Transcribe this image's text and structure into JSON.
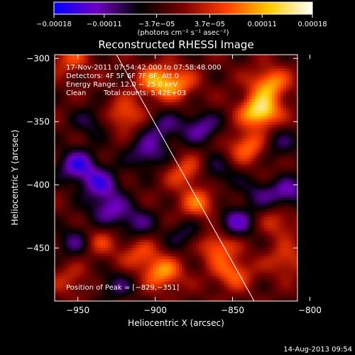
{
  "chart_data": {
    "type": "heatmap",
    "title": "Reconstructed RHESSI Image",
    "xlabel": "Heliocentric X (arcsec)",
    "ylabel": "Heliocentric Y (arcsec)",
    "xlim": [
      -965,
      -808
    ],
    "ylim": [
      -492,
      -297
    ],
    "x_ticks": [
      {
        "value": -950,
        "label": "−950"
      },
      {
        "value": -900,
        "label": "−900"
      },
      {
        "value": -850,
        "label": "−850"
      },
      {
        "value": -800,
        "label": "−800"
      }
    ],
    "y_ticks": [
      {
        "value": -300,
        "label": "−300"
      },
      {
        "value": -350,
        "label": "−350"
      },
      {
        "value": -400,
        "label": "−400"
      },
      {
        "value": -450,
        "label": "−450"
      }
    ],
    "annotations": [
      "17-Nov-2011 07:54:42.000 to 07:58:48.000",
      "Detectors: 4F 5F 6F 7F 8F, Att 0",
      "Energy Range: 12.0 − 25.0 keV",
      "Clean",
      "Total counts: 5.42E+03",
      "Position of Peak = [−829,−351]"
    ],
    "peak": {
      "x": -829,
      "y": -351
    },
    "limb_line": {
      "x": [
        -925,
        -836
      ],
      "y": [
        -297,
        -492
      ]
    },
    "colorbar": {
      "range": [
        -0.00018,
        0.00018
      ],
      "ticks": [
        {
          "value": -0.00018,
          "label": "−0.00018"
        },
        {
          "value": -0.00011,
          "label": "−0.00011"
        },
        {
          "value": -3.7e-05,
          "label": "−3.7e−05"
        },
        {
          "value": 3.7e-05,
          "label": "3.7e−05"
        },
        {
          "value": 0.00011,
          "label": "0.00011"
        },
        {
          "value": 0.00018,
          "label": "0.00018"
        }
      ],
      "units": "(photons cm⁻² s⁻¹ asec⁻²)",
      "colors": [
        "#0000ff",
        "#7000c0",
        "#000000",
        "#7a0000",
        "#ff4000",
        "#ffcc00",
        "#ffffff"
      ]
    },
    "blobs": [
      {
        "x": -832,
        "y": -342,
        "v": 0.00017
      },
      {
        "x": -826,
        "y": -320,
        "v": 0.00012
      },
      {
        "x": -840,
        "y": -370,
        "v": 0.0001
      },
      {
        "x": -900,
        "y": -318,
        "v": 0.0001
      },
      {
        "x": -886,
        "y": -320,
        "v": 9e-05
      },
      {
        "x": -920,
        "y": -345,
        "v": 9e-05
      },
      {
        "x": -880,
        "y": -390,
        "v": 8e-05
      },
      {
        "x": -872,
        "y": -415,
        "v": 9e-05
      },
      {
        "x": -860,
        "y": -448,
        "v": 0.0001
      },
      {
        "x": -850,
        "y": -470,
        "v": 9e-05
      },
      {
        "x": -895,
        "y": -470,
        "v": 0.00011
      },
      {
        "x": -910,
        "y": -455,
        "v": 7e-05
      },
      {
        "x": -938,
        "y": -445,
        "v": 8e-05
      },
      {
        "x": -955,
        "y": -300,
        "v": 7e-05
      },
      {
        "x": -955,
        "y": -475,
        "v": 5e-05
      },
      {
        "x": -822,
        "y": -400,
        "v": 5e-05
      },
      {
        "x": -820,
        "y": -430,
        "v": 6e-05
      },
      {
        "x": -815,
        "y": -460,
        "v": 7e-05
      },
      {
        "x": -935,
        "y": -400,
        "v": -0.0001
      },
      {
        "x": -950,
        "y": -385,
        "v": -0.00012
      },
      {
        "x": -905,
        "y": -375,
        "v": -9e-05
      },
      {
        "x": -895,
        "y": -355,
        "v": -7e-05
      },
      {
        "x": -930,
        "y": -420,
        "v": -9e-05
      },
      {
        "x": -940,
        "y": -350,
        "v": -6e-05
      },
      {
        "x": -815,
        "y": -405,
        "v": -0.00012
      },
      {
        "x": -848,
        "y": -430,
        "v": -0.0001
      },
      {
        "x": -870,
        "y": -355,
        "v": -9e-05
      },
      {
        "x": -832,
        "y": -405,
        "v": -7e-05
      },
      {
        "x": -950,
        "y": -445,
        "v": -9e-05
      },
      {
        "x": -925,
        "y": -480,
        "v": -6e-05
      },
      {
        "x": -820,
        "y": -368,
        "v": -6e-05
      },
      {
        "x": -912,
        "y": -430,
        "v": -7e-05
      },
      {
        "x": -860,
        "y": -390,
        "v": -6e-05
      },
      {
        "x": -880,
        "y": -440,
        "v": -6e-05
      }
    ]
  },
  "footer": {
    "date": "14-Aug-2013 09:54"
  }
}
